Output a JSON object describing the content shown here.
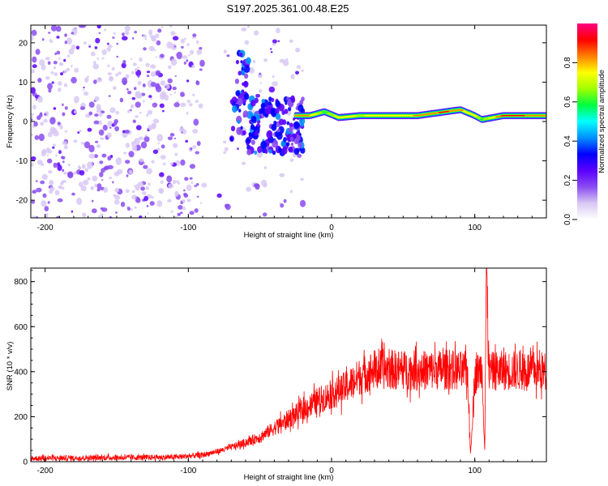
{
  "chart_data": [
    {
      "type": "heatmap",
      "title": "S197.2025.361.00.48.E25",
      "xlabel": "Height of straight line (km)",
      "ylabel": "Frequency (Hz)",
      "xlim": [
        -210,
        150
      ],
      "ylim": [
        -24.5,
        24.5
      ],
      "xticks": [
        -200,
        -100,
        0,
        100
      ],
      "yticks": [
        -20,
        -10,
        0,
        10,
        20
      ],
      "colorbar": {
        "label": "Normalized spectral amplitude",
        "range": [
          0.0,
          1.0
        ],
        "ticks": [
          0.0,
          0.2,
          0.4,
          0.6,
          0.8
        ],
        "colors": [
          "#ffffff",
          "#d8c8f4",
          "#8a4cf0",
          "#5b00ff",
          "#0000ff",
          "#0090ff",
          "#00ffff",
          "#00ff40",
          "#a0ff00",
          "#ffff00",
          "#ff8000",
          "#ff0000",
          "#ff0080"
        ]
      },
      "ridge": [
        {
          "x": -25,
          "y": 1.5,
          "amp": 0.85
        },
        {
          "x": -15,
          "y": 1.5,
          "amp": 0.8
        },
        {
          "x": -5,
          "y": 2.5,
          "amp": 0.6
        },
        {
          "x": 5,
          "y": 1.0,
          "amp": 0.75
        },
        {
          "x": 20,
          "y": 1.5,
          "amp": 0.7
        },
        {
          "x": 40,
          "y": 1.5,
          "amp": 0.75
        },
        {
          "x": 60,
          "y": 1.5,
          "amp": 0.8
        },
        {
          "x": 80,
          "y": 2.5,
          "amp": 0.9
        },
        {
          "x": 90,
          "y": 3.0,
          "amp": 0.8
        },
        {
          "x": 100,
          "y": 1.5,
          "amp": 0.75
        },
        {
          "x": 105,
          "y": 0.5,
          "amp": 0.6
        },
        {
          "x": 120,
          "y": 1.5,
          "amp": 0.9
        },
        {
          "x": 150,
          "y": 1.5,
          "amp": 0.85
        }
      ]
    },
    {
      "type": "line",
      "xlabel": "Height of straight line (km)",
      "ylabel": "SNR (10 * v/v)",
      "xlim": [
        -210,
        150
      ],
      "ylim": [
        0,
        860
      ],
      "xticks": [
        -200,
        -100,
        0,
        100
      ],
      "yticks": [
        0,
        200,
        400,
        600,
        800
      ],
      "color": "#ff0000",
      "series": [
        {
          "name": "SNR",
          "x": [
            -210,
            -150,
            -110,
            -100,
            -90,
            -80,
            -70,
            -60,
            -50,
            -40,
            -30,
            -20,
            -10,
            0,
            10,
            20,
            30,
            40,
            60,
            80,
            95,
            97,
            100,
            105,
            107,
            108,
            110,
            120,
            140,
            150
          ],
          "values": [
            15,
            18,
            20,
            25,
            30,
            45,
            65,
            85,
            110,
            150,
            190,
            230,
            270,
            300,
            330,
            380,
            410,
            410,
            405,
            410,
            400,
            30,
            380,
            420,
            50,
            860,
            400,
            405,
            405,
            400
          ]
        }
      ]
    }
  ]
}
